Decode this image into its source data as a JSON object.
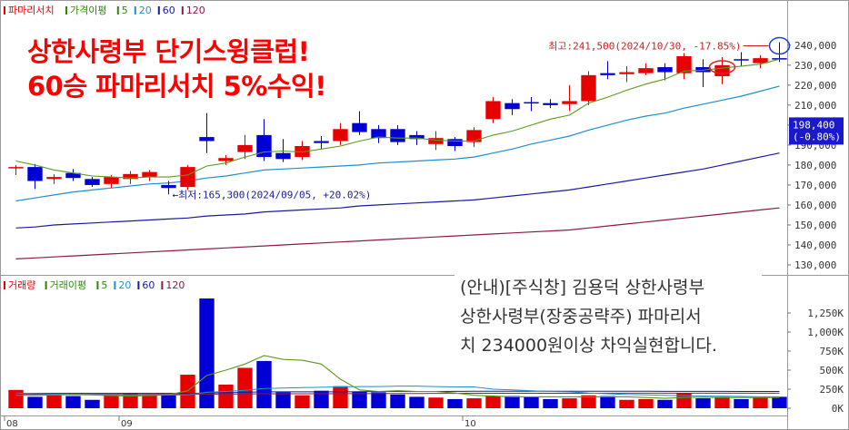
{
  "chart_data": {
    "type": "candlestick",
    "legend_price": [
      {
        "label": "파마리서치",
        "color": "#e60000"
      },
      {
        "label": "가격이평",
        "color": "#2a8a00"
      },
      {
        "label": "5",
        "color": "#2a8a00"
      },
      {
        "label": "20",
        "color": "#1e8fd0"
      },
      {
        "label": "60",
        "color": "#1a1aa0"
      },
      {
        "label": "120",
        "color": "#8a1a4a"
      }
    ],
    "legend_volume": [
      {
        "label": "거래량",
        "color": "#e60000"
      },
      {
        "label": "거래이평",
        "color": "#2a8a00"
      },
      {
        "label": "5",
        "color": "#2a8a00"
      },
      {
        "label": "20",
        "color": "#1e8fd0"
      },
      {
        "label": "60",
        "color": "#1a1aa0"
      },
      {
        "label": "120",
        "color": "#8a1a4a"
      }
    ],
    "y_ticks": [
      "240,000",
      "230,000",
      "220,000",
      "210,000",
      "200,000",
      "190,000",
      "180,000",
      "170,000",
      "160,000",
      "150,000",
      "140,000",
      "130,000"
    ],
    "ylim": [
      125000,
      249000
    ],
    "vol_ticks": [
      "1,250K",
      "1,000K",
      "750K",
      "500K",
      "250K",
      "0K"
    ],
    "vol_ylim": [
      0,
      1500
    ],
    "x_labels": [
      {
        "i": 0,
        "label": "08"
      },
      {
        "i": 6,
        "label": "09"
      },
      {
        "i": 24,
        "label": "10"
      }
    ],
    "current_price": "198,400",
    "current_change": "(-0.80%)",
    "high_annotation": "최고:241,500(2024/10/30, -17.85%)",
    "low_annotation": "최저:165,300(2024/09/05, +20.02%)",
    "candles": [
      {
        "o": 178500,
        "c": 179000,
        "h": 180000,
        "l": 175000,
        "v": 240
      },
      {
        "o": 179000,
        "c": 172000,
        "h": 180500,
        "l": 168000,
        "v": 150
      },
      {
        "o": 173000,
        "c": 174000,
        "h": 175500,
        "l": 170500,
        "v": 170
      },
      {
        "o": 176000,
        "c": 173500,
        "h": 178000,
        "l": 172000,
        "v": 160
      },
      {
        "o": 173000,
        "c": 170000,
        "h": 174000,
        "l": 169000,
        "v": 110
      },
      {
        "o": 170500,
        "c": 174000,
        "h": 175000,
        "l": 168500,
        "v": 170
      },
      {
        "o": 173000,
        "c": 175500,
        "h": 177000,
        "l": 170500,
        "v": 200
      },
      {
        "o": 174000,
        "c": 176500,
        "h": 177500,
        "l": 172000,
        "v": 170
      },
      {
        "o": 170000,
        "c": 168500,
        "h": 172000,
        "l": 165300,
        "v": 170
      },
      {
        "o": 169000,
        "c": 179000,
        "h": 180000,
        "l": 167500,
        "v": 440
      },
      {
        "o": 194000,
        "c": 192000,
        "h": 206000,
        "l": 186000,
        "v": 1440
      },
      {
        "o": 182000,
        "c": 183500,
        "h": 185000,
        "l": 180000,
        "v": 310
      },
      {
        "o": 186500,
        "c": 190000,
        "h": 195000,
        "l": 183000,
        "v": 530
      },
      {
        "o": 195000,
        "c": 184000,
        "h": 203000,
        "l": 182000,
        "v": 620
      },
      {
        "o": 186000,
        "c": 183000,
        "h": 193000,
        "l": 181500,
        "v": 210
      },
      {
        "o": 184000,
        "c": 189500,
        "h": 192000,
        "l": 182500,
        "v": 170
      },
      {
        "o": 192000,
        "c": 191000,
        "h": 194500,
        "l": 188000,
        "v": 230
      },
      {
        "o": 192000,
        "c": 198000,
        "h": 201000,
        "l": 190000,
        "v": 290
      },
      {
        "o": 201000,
        "c": 196500,
        "h": 207000,
        "l": 195000,
        "v": 220
      },
      {
        "o": 198000,
        "c": 193500,
        "h": 200000,
        "l": 191000,
        "v": 210
      },
      {
        "o": 198000,
        "c": 191500,
        "h": 200000,
        "l": 190000,
        "v": 180
      },
      {
        "o": 195000,
        "c": 193000,
        "h": 197000,
        "l": 190000,
        "v": 150
      },
      {
        "o": 190500,
        "c": 193500,
        "h": 197000,
        "l": 187500,
        "v": 140
      },
      {
        "o": 193000,
        "c": 189500,
        "h": 194000,
        "l": 187000,
        "v": 120
      },
      {
        "o": 191500,
        "c": 197500,
        "h": 199000,
        "l": 189000,
        "v": 130
      },
      {
        "o": 203000,
        "c": 212000,
        "h": 214000,
        "l": 201000,
        "v": 160
      },
      {
        "o": 211000,
        "c": 208000,
        "h": 213000,
        "l": 205000,
        "v": 160
      },
      {
        "o": 211500,
        "c": 211000,
        "h": 214000,
        "l": 207000,
        "v": 150
      },
      {
        "o": 211000,
        "c": 210000,
        "h": 213000,
        "l": 208500,
        "v": 120
      },
      {
        "o": 210500,
        "c": 212000,
        "h": 220000,
        "l": 207000,
        "v": 130
      },
      {
        "o": 212000,
        "c": 225000,
        "h": 227000,
        "l": 210000,
        "v": 170
      },
      {
        "o": 226000,
        "c": 225000,
        "h": 232000,
        "l": 223000,
        "v": 160
      },
      {
        "o": 225500,
        "c": 226500,
        "h": 229500,
        "l": 221500,
        "v": 110
      },
      {
        "o": 226000,
        "c": 228500,
        "h": 231000,
        "l": 225000,
        "v": 120
      },
      {
        "o": 229000,
        "c": 226500,
        "h": 231000,
        "l": 222500,
        "v": 110
      },
      {
        "o": 226000,
        "c": 234500,
        "h": 236000,
        "l": 223000,
        "v": 200
      },
      {
        "o": 229000,
        "c": 226500,
        "h": 233000,
        "l": 219000,
        "v": 130
      },
      {
        "o": 224500,
        "c": 230000,
        "h": 234000,
        "l": 220500,
        "v": 150
      },
      {
        "o": 233000,
        "c": 232500,
        "h": 236500,
        "l": 229500,
        "v": 120
      },
      {
        "o": 231000,
        "c": 233500,
        "h": 235000,
        "l": 228500,
        "v": 140
      },
      {
        "o": 233500,
        "c": 233000,
        "h": 241500,
        "l": 231500,
        "v": 150
      }
    ],
    "ma5": [
      182000,
      180000,
      177500,
      176000,
      174500,
      174000,
      173500,
      174000,
      174000,
      175000,
      179500,
      181000,
      184000,
      186500,
      187000,
      186500,
      188000,
      189500,
      192000,
      194000,
      193500,
      193500,
      192500,
      192000,
      192000,
      195000,
      197000,
      200000,
      203000,
      205000,
      211000,
      214000,
      217500,
      220500,
      223000,
      227000,
      227500,
      228500,
      229500,
      230500,
      233000
    ],
    "ma20": [
      162000,
      163500,
      165000,
      166500,
      167500,
      168500,
      169500,
      170500,
      171000,
      172000,
      173500,
      174500,
      176000,
      177500,
      178000,
      178500,
      179000,
      179500,
      180000,
      181000,
      181500,
      182000,
      182500,
      183000,
      184000,
      186000,
      188000,
      190500,
      192500,
      194500,
      197500,
      200000,
      202500,
      204500,
      206000,
      208500,
      210500,
      212500,
      214500,
      217000,
      219500
    ],
    "ma60": [
      148500,
      149000,
      150000,
      150500,
      151000,
      151500,
      152000,
      152500,
      153000,
      153500,
      154500,
      155000,
      155500,
      156500,
      157000,
      157500,
      158000,
      158500,
      159500,
      160000,
      160500,
      161000,
      161500,
      162000,
      162500,
      163500,
      164500,
      165500,
      166500,
      167500,
      169000,
      170500,
      172000,
      173500,
      175000,
      176500,
      178000,
      180000,
      182000,
      184000,
      186000
    ],
    "ma120": [
      133000,
      133500,
      134000,
      134500,
      135000,
      135500,
      136000,
      136500,
      137000,
      137500,
      138000,
      138500,
      139000,
      139500,
      140000,
      140500,
      141000,
      141500,
      142000,
      142500,
      143000,
      143500,
      144000,
      144500,
      145000,
      145500,
      146000,
      146500,
      147000,
      147500,
      148500,
      149500,
      150500,
      151500,
      152500,
      153500,
      154500,
      155500,
      156500,
      157500,
      158500
    ],
    "vol_ma5": [
      170,
      170,
      175,
      180,
      175,
      165,
      160,
      165,
      175,
      230,
      430,
      500,
      580,
      690,
      640,
      630,
      580,
      380,
      240,
      220,
      230,
      220,
      220,
      200,
      170,
      160,
      150,
      150,
      150,
      150,
      150,
      150,
      150,
      140,
      130,
      140,
      145,
      140,
      140,
      140,
      140
    ],
    "vol_ma20": [
      200,
      190,
      185,
      180,
      178,
      176,
      175,
      174,
      173,
      175,
      210,
      220,
      235,
      260,
      265,
      270,
      275,
      280,
      285,
      285,
      290,
      290,
      285,
      280,
      280,
      250,
      240,
      230,
      220,
      215,
      200,
      190,
      180,
      175,
      170,
      165,
      160,
      158,
      155,
      150,
      150
    ],
    "vol_ma60": [
      195,
      195,
      195,
      195,
      195,
      195,
      195,
      195,
      195,
      195,
      200,
      205,
      210,
      215,
      215,
      215,
      215,
      215,
      218,
      220,
      220,
      220,
      220,
      222,
      224,
      224,
      224,
      224,
      224,
      224,
      224,
      224,
      224,
      224,
      222,
      222,
      222,
      222,
      220,
      220,
      220
    ],
    "vol_ma120": [
      180,
      180,
      180,
      181,
      181,
      181,
      182,
      182,
      182,
      183,
      185,
      186,
      188,
      190,
      190,
      191,
      191,
      192,
      192,
      193,
      194,
      194,
      195,
      195,
      196,
      196,
      196,
      196,
      197,
      197,
      197,
      198,
      198,
      198,
      198,
      198,
      198,
      198,
      198,
      198,
      198
    ]
  },
  "overlay": {
    "line1": "상한사령부  단기스윙클럽!",
    "line2": "60승  파마리서치  5%수익!"
  },
  "notice": {
    "line1": "(안내)[주식창] 김용덕 상한사령부",
    "line2": "상한사령부(장중공략주) 파마리서",
    "line3": "치 234000원이상 차익실현합니다."
  }
}
